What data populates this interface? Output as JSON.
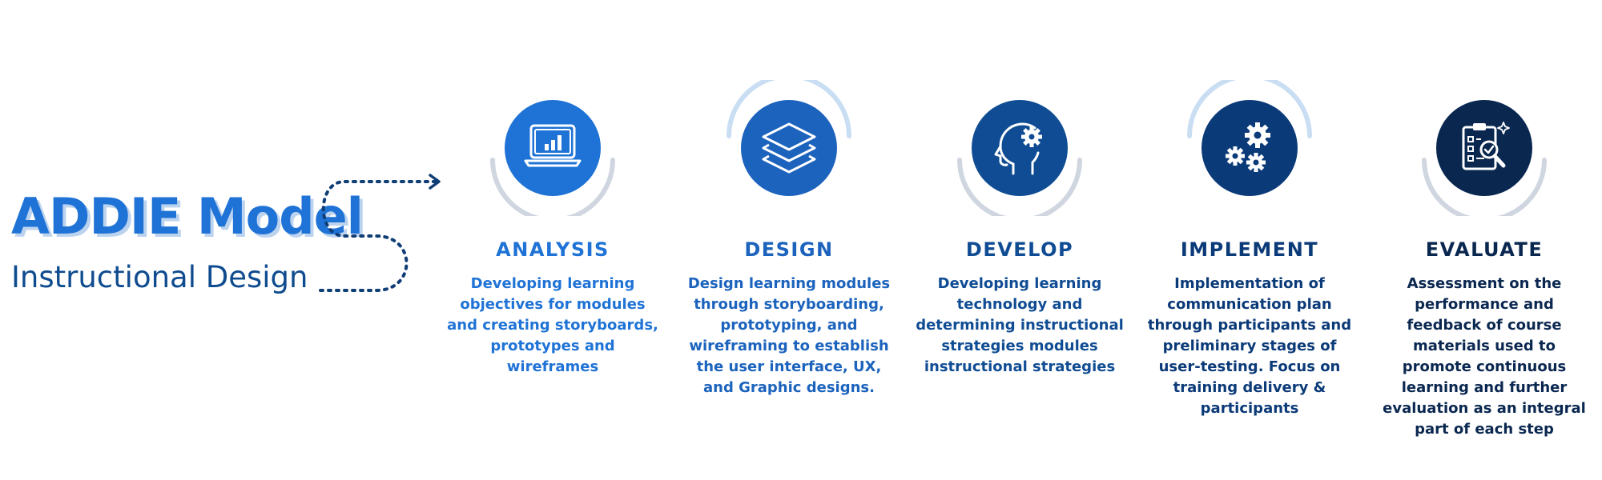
{
  "heading": {
    "title": "ADDIE Model",
    "subtitle": "Instructional Design"
  },
  "steps": [
    {
      "title": "ANALYSIS",
      "description": "Developing learning objectives for modules and creating storyboards, prototypes and wireframes",
      "icon": "laptop-chart-icon",
      "circle_color": "#1f73d6",
      "text_color": "#1f73d6",
      "arc_position": "bottom"
    },
    {
      "title": "DESIGN",
      "description": "Design learning modules through storyboarding, prototyping, and wireframing to establish the user interface, UX, and Graphic designs.",
      "icon": "layers-icon",
      "circle_color": "#1c63bd",
      "text_color": "#1c63bd",
      "arc_position": "top"
    },
    {
      "title": "DEVELOP",
      "description": "Developing learning technology and determining instructional strategies modules instructional strategies",
      "icon": "head-gear-icon",
      "circle_color": "#0f4c93",
      "text_color": "#0f4c93",
      "arc_position": "bottom"
    },
    {
      "title": "IMPLEMENT",
      "description": "Implementation of communication plan through participants and preliminary stages of user-testing. Focus on training delivery & participants",
      "icon": "gears-icon",
      "circle_color": "#0b3a78",
      "text_color": "#0b3a78",
      "arc_position": "top"
    },
    {
      "title": "EVALUATE",
      "description": "Assessment on the performance and feedback of course materials used to promote continuous learning and further evaluation as an integral part of each step",
      "icon": "clipboard-magnifier-icon",
      "circle_color": "#0a2750",
      "text_color": "#0a2750",
      "arc_position": "bottom"
    }
  ],
  "colors": {
    "arc_light_blue": "#c9def3",
    "arc_gray": "#cfd6df",
    "connector": "#0f3d75"
  }
}
